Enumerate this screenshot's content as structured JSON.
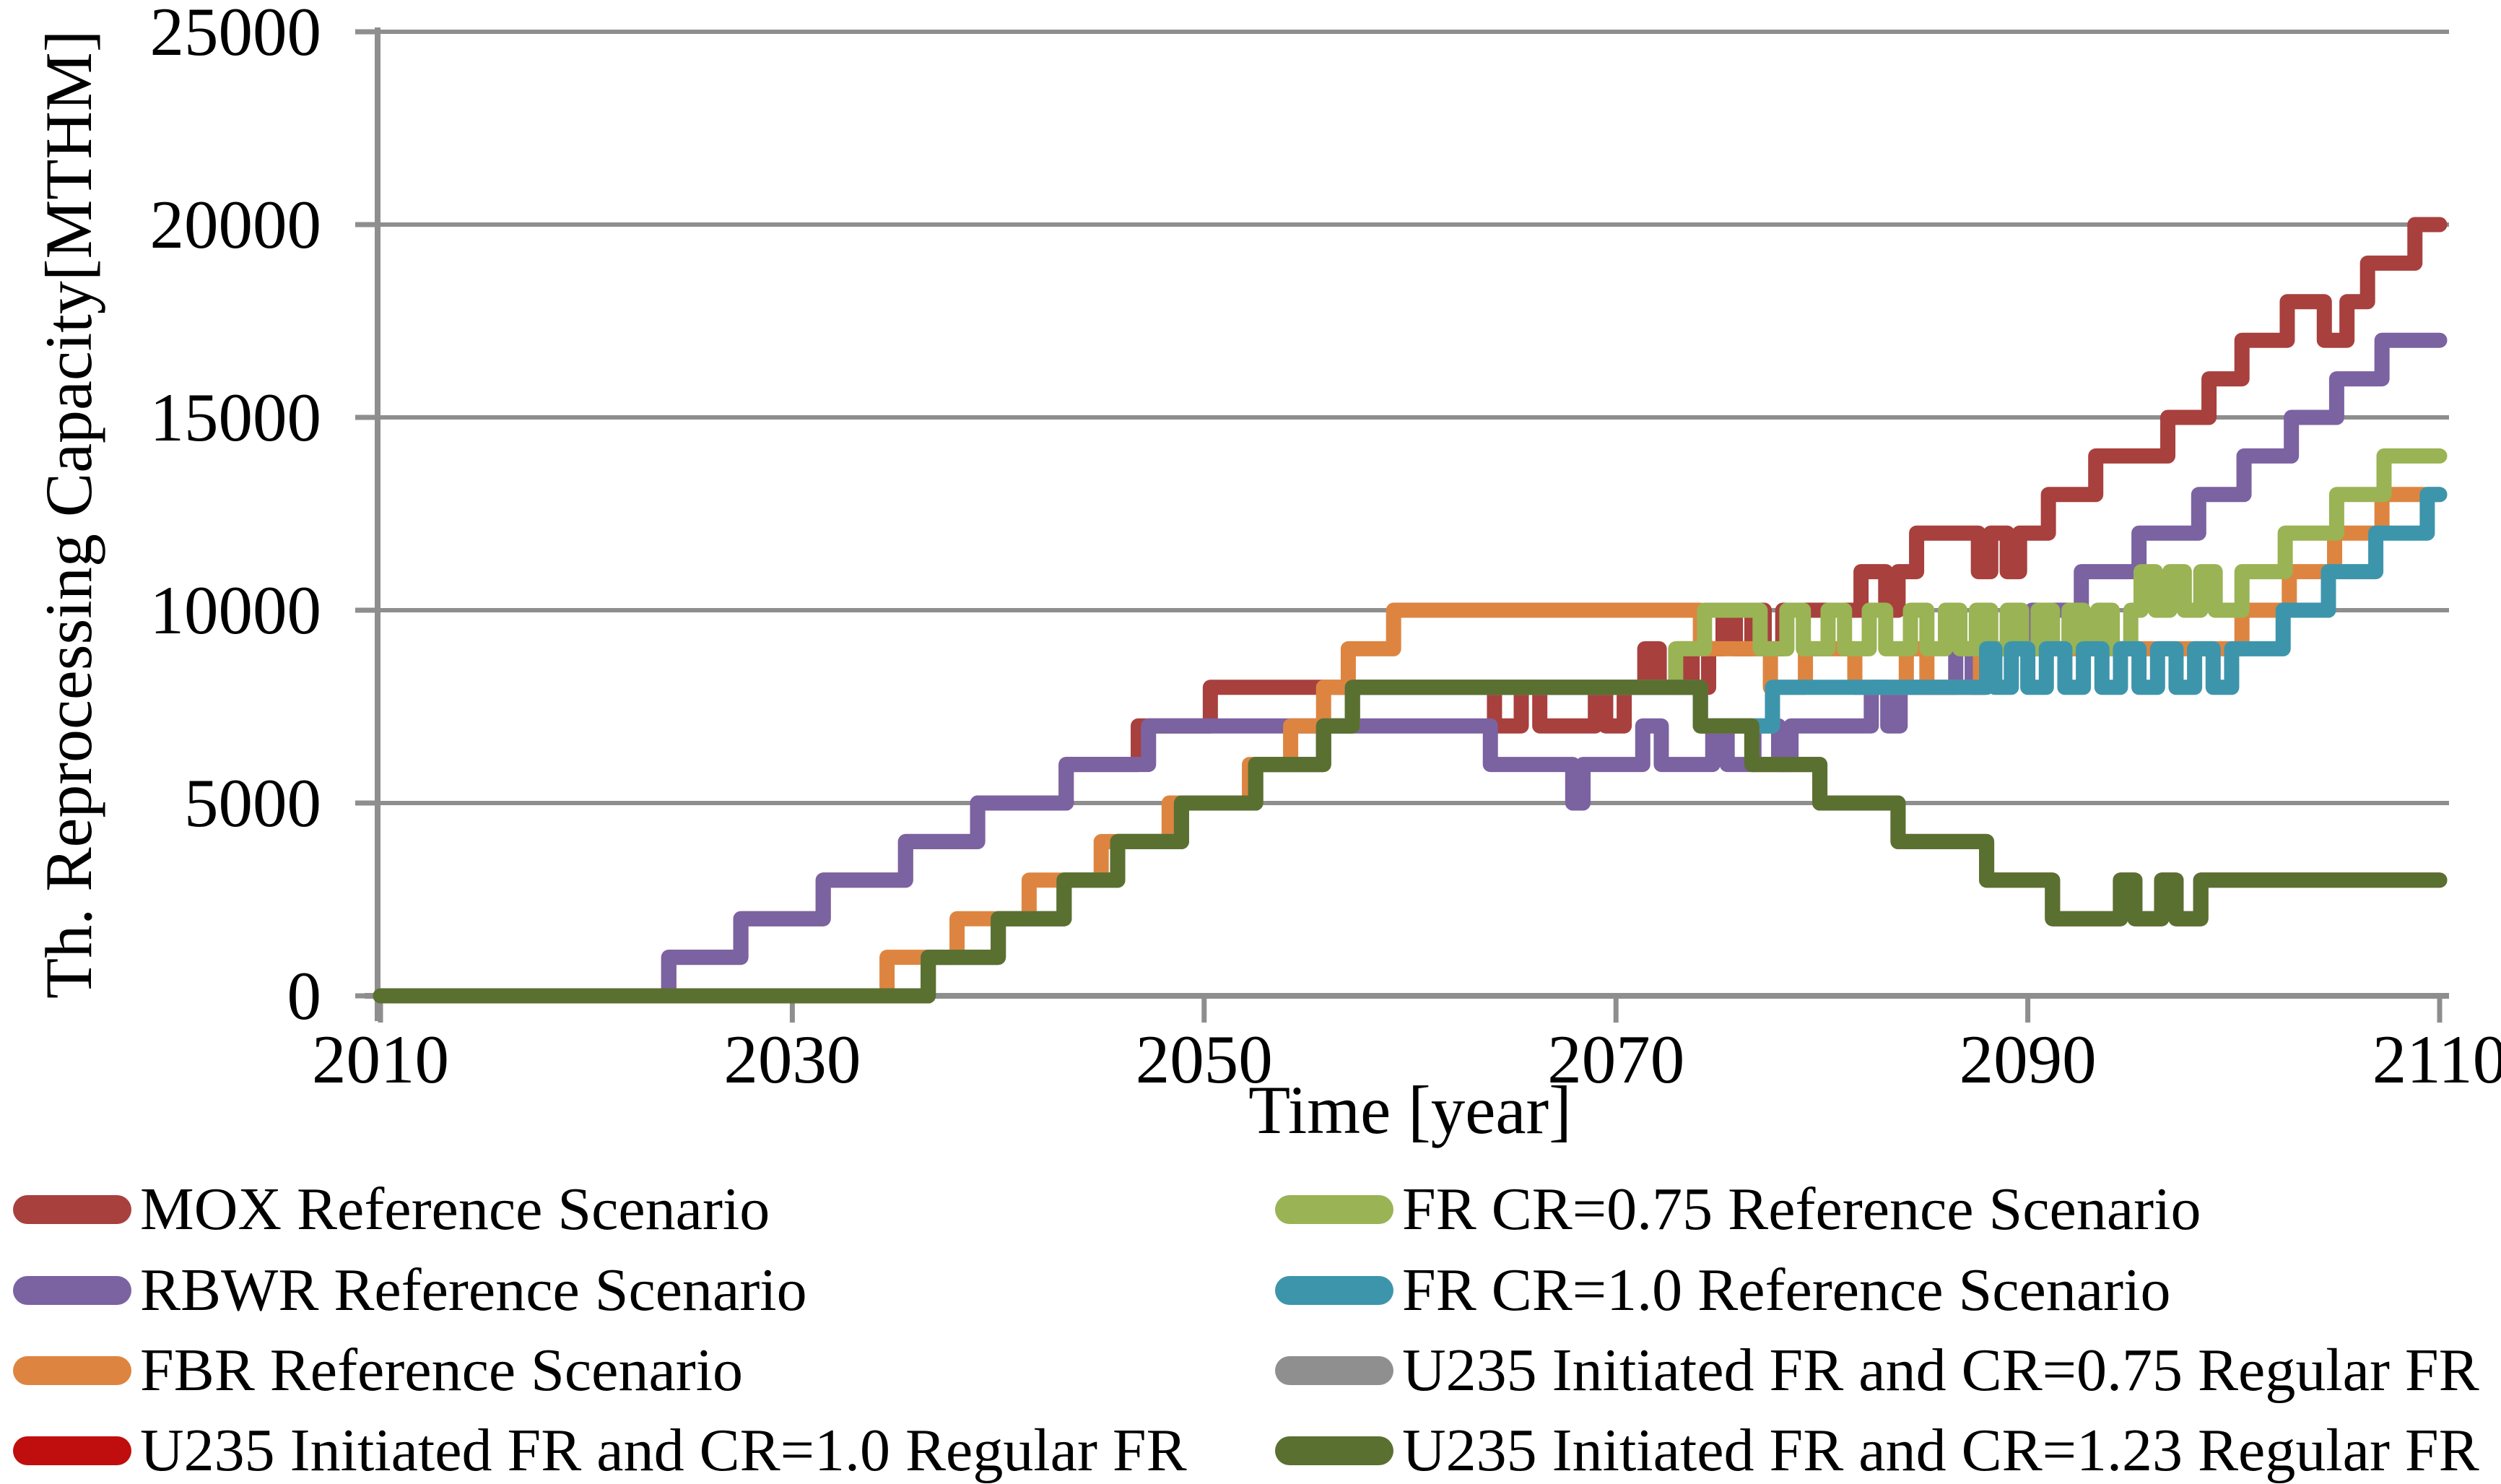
{
  "chart_data": {
    "type": "line",
    "subtype": "step",
    "title": "",
    "xlabel": "Time [year]",
    "ylabel": "Th. Reprocessing Capacity[MTHM]",
    "xlim": [
      2010,
      2110
    ],
    "ylim": [
      0,
      25000
    ],
    "xticks": [
      2010,
      2030,
      2050,
      2070,
      2090,
      2110
    ],
    "yticks": [
      0,
      5000,
      10000,
      15000,
      20000,
      25000
    ],
    "grid": true,
    "axis_color": "#8E8E8E",
    "text_color": "#000000",
    "note": "steps are [year, newValue]; value holds from that year until next step; all series start 2010 and end 2110",
    "series": [
      {
        "id": "mox",
        "label": "MOX Reference Scenario",
        "color": "#A8403E",
        "steps": [
          [
            2010,
            0
          ],
          [
            2024,
            1000
          ],
          [
            2027.5,
            2000
          ],
          [
            2031.5,
            3000
          ],
          [
            2035.5,
            4000
          ],
          [
            2039,
            5000
          ],
          [
            2043.3,
            6000
          ],
          [
            2046.8,
            7000
          ],
          [
            2050.3,
            8000
          ],
          [
            2064.1,
            7000
          ],
          [
            2065.4,
            8000
          ],
          [
            2066.3,
            7000
          ],
          [
            2069,
            8000
          ],
          [
            2069.5,
            7000
          ],
          [
            2070.4,
            8000
          ],
          [
            2071.4,
            9000
          ],
          [
            2072.1,
            8000
          ],
          [
            2073,
            9000
          ],
          [
            2073.7,
            8000
          ],
          [
            2074.5,
            9000
          ],
          [
            2075.2,
            10000
          ],
          [
            2075.8,
            9000
          ],
          [
            2076.6,
            10000
          ],
          [
            2077.2,
            9000
          ],
          [
            2078.1,
            10000
          ],
          [
            2081.9,
            11000
          ],
          [
            2083.1,
            10000
          ],
          [
            2083.7,
            11000
          ],
          [
            2084.6,
            12000
          ],
          [
            2087.6,
            11000
          ],
          [
            2088.2,
            12000
          ],
          [
            2089,
            11000
          ],
          [
            2089.6,
            12000
          ],
          [
            2091,
            13000
          ],
          [
            2093.3,
            14000
          ],
          [
            2096.8,
            15000
          ],
          [
            2098.8,
            16000
          ],
          [
            2100.4,
            17000
          ],
          [
            2102.6,
            18000
          ],
          [
            2104.4,
            17000
          ],
          [
            2105.5,
            18000
          ],
          [
            2106.5,
            19000
          ],
          [
            2108.8,
            20000
          ]
        ]
      },
      {
        "id": "rbwr",
        "label": "RBWR Reference Scenario",
        "color": "#7B62A1",
        "steps": [
          [
            2010,
            0
          ],
          [
            2024,
            1000
          ],
          [
            2027.5,
            2000
          ],
          [
            2031.5,
            3000
          ],
          [
            2035.5,
            4000
          ],
          [
            2039,
            5000
          ],
          [
            2043.3,
            6000
          ],
          [
            2047.3,
            7000
          ],
          [
            2063.9,
            6000
          ],
          [
            2067.9,
            5000
          ],
          [
            2068.4,
            6000
          ],
          [
            2071.3,
            7000
          ],
          [
            2072.2,
            6000
          ],
          [
            2074.7,
            7000
          ],
          [
            2075.4,
            6000
          ],
          [
            2076.7,
            7000
          ],
          [
            2077.9,
            6000
          ],
          [
            2078.5,
            7000
          ],
          [
            2082.4,
            8000
          ],
          [
            2083.2,
            7000
          ],
          [
            2083.8,
            8000
          ],
          [
            2086.5,
            9000
          ],
          [
            2087.3,
            8000
          ],
          [
            2087.9,
            9000
          ],
          [
            2090.2,
            10000
          ],
          [
            2092.6,
            11000
          ],
          [
            2095.4,
            12000
          ],
          [
            2098.3,
            13000
          ],
          [
            2100.5,
            14000
          ],
          [
            2102.8,
            15000
          ],
          [
            2105,
            16000
          ],
          [
            2107.2,
            17000
          ]
        ]
      },
      {
        "id": "fbr",
        "label": "FBR Reference Scenario",
        "color": "#DD8540",
        "steps": [
          [
            2010,
            0
          ],
          [
            2034.6,
            1000
          ],
          [
            2038,
            2000
          ],
          [
            2041.5,
            3000
          ],
          [
            2045,
            4000
          ],
          [
            2048.3,
            5000
          ],
          [
            2052.2,
            6000
          ],
          [
            2054.2,
            7000
          ],
          [
            2055.8,
            8000
          ],
          [
            2057,
            9000
          ],
          [
            2059.2,
            10000
          ],
          [
            2074.1,
            9000
          ],
          [
            2077.5,
            8000
          ],
          [
            2079.2,
            9000
          ],
          [
            2081.6,
            8000
          ],
          [
            2084.1,
            9000
          ],
          [
            2085.1,
            8000
          ],
          [
            2087.7,
            9000
          ],
          [
            2100.4,
            10000
          ],
          [
            2102.7,
            11000
          ],
          [
            2104.9,
            12000
          ],
          [
            2107.2,
            13000
          ]
        ]
      },
      {
        "id": "u235_cr10",
        "label": "U235 Initiated FR and CR=1.0 Regular FR",
        "color": "#C00D0D",
        "steps": [
          [
            2010,
            0
          ],
          [
            2036.6,
            1000
          ],
          [
            2040,
            2000
          ],
          [
            2043.2,
            3000
          ],
          [
            2045.8,
            4000
          ],
          [
            2048.9,
            5000
          ],
          [
            2052.5,
            6000
          ],
          [
            2055.8,
            7000
          ],
          [
            2057.2,
            8000
          ],
          [
            2074.1,
            7000
          ],
          [
            2076.6,
            6000
          ],
          [
            2079.9,
            5000
          ],
          [
            2083.7,
            4000
          ],
          [
            2088,
            3000
          ],
          [
            2091.2,
            2000
          ],
          [
            2094.5,
            3000
          ],
          [
            2095.2,
            2000
          ],
          [
            2096.5,
            3000
          ],
          [
            2097.2,
            2000
          ],
          [
            2098.4,
            3000
          ]
        ]
      },
      {
        "id": "fr075",
        "label": "FR CR=0.75 Reference Scenario",
        "color": "#9AB354",
        "steps": [
          [
            2010,
            0
          ],
          [
            2036.6,
            1000
          ],
          [
            2040,
            2000
          ],
          [
            2043.2,
            3000
          ],
          [
            2045.8,
            4000
          ],
          [
            2048.9,
            5000
          ],
          [
            2052.5,
            6000
          ],
          [
            2055.8,
            7000
          ],
          [
            2057.2,
            8000
          ],
          [
            2072.9,
            9000
          ],
          [
            2074.3,
            10000
          ],
          [
            2077,
            9000
          ],
          [
            2078.3,
            10000
          ],
          [
            2079.1,
            9000
          ],
          [
            2080.3,
            10000
          ],
          [
            2081.1,
            9000
          ],
          [
            2082.3,
            10000
          ],
          [
            2083.1,
            9000
          ],
          [
            2084.3,
            10000
          ],
          [
            2085.1,
            9000
          ],
          [
            2086,
            10000
          ],
          [
            2086.7,
            9000
          ],
          [
            2087.5,
            10000
          ],
          [
            2088.2,
            9000
          ],
          [
            2089,
            10000
          ],
          [
            2089.7,
            9000
          ],
          [
            2090.5,
            10000
          ],
          [
            2091.2,
            9000
          ],
          [
            2092,
            10000
          ],
          [
            2092.7,
            9000
          ],
          [
            2093.4,
            10000
          ],
          [
            2094.1,
            9000
          ],
          [
            2095,
            10000
          ],
          [
            2095.5,
            11000
          ],
          [
            2096.2,
            10000
          ],
          [
            2096.9,
            11000
          ],
          [
            2097.6,
            10000
          ],
          [
            2098.4,
            11000
          ],
          [
            2099.1,
            10000
          ],
          [
            2100.4,
            11000
          ],
          [
            2102.5,
            12000
          ],
          [
            2105,
            13000
          ],
          [
            2107.3,
            14000
          ]
        ]
      },
      {
        "id": "fr10",
        "label": "FR CR=1.0 Reference Scenario",
        "color": "#3D95AC",
        "steps": [
          [
            2010,
            0
          ],
          [
            2036.6,
            1000
          ],
          [
            2040,
            2000
          ],
          [
            2043.2,
            3000
          ],
          [
            2045.8,
            4000
          ],
          [
            2048.9,
            5000
          ],
          [
            2052.5,
            6000
          ],
          [
            2055.8,
            7000
          ],
          [
            2057.2,
            8000
          ],
          [
            2074.1,
            7000
          ],
          [
            2077.6,
            8000
          ],
          [
            2088,
            9000
          ],
          [
            2088.4,
            8000
          ],
          [
            2089.2,
            9000
          ],
          [
            2090,
            8000
          ],
          [
            2090.9,
            9000
          ],
          [
            2091.8,
            8000
          ],
          [
            2092.7,
            9000
          ],
          [
            2093.6,
            8000
          ],
          [
            2094.5,
            9000
          ],
          [
            2095.4,
            8000
          ],
          [
            2096.3,
            9000
          ],
          [
            2097.2,
            8000
          ],
          [
            2098.1,
            9000
          ],
          [
            2099,
            8000
          ],
          [
            2099.9,
            9000
          ],
          [
            2102.4,
            10000
          ],
          [
            2104.6,
            11000
          ],
          [
            2106.9,
            12000
          ],
          [
            2109.4,
            13000
          ]
        ]
      },
      {
        "id": "u235_cr075",
        "label": "U235 Initiated FR and CR=0.75 Regular FR",
        "color": "#8F8F8F",
        "steps": [
          [
            2010,
            0
          ],
          [
            2036.6,
            1000
          ],
          [
            2040,
            2000
          ],
          [
            2043.2,
            3000
          ],
          [
            2045.8,
            4000
          ],
          [
            2048.9,
            5000
          ],
          [
            2052.5,
            6000
          ],
          [
            2055.8,
            7000
          ],
          [
            2057.2,
            8000
          ],
          [
            2074.1,
            7000
          ],
          [
            2076.6,
            6000
          ],
          [
            2079.9,
            5000
          ],
          [
            2083.7,
            4000
          ],
          [
            2088,
            3000
          ],
          [
            2091.2,
            2000
          ],
          [
            2094.5,
            3000
          ],
          [
            2095.2,
            2000
          ],
          [
            2096.5,
            3000
          ],
          [
            2097.2,
            2000
          ],
          [
            2098.4,
            3000
          ]
        ]
      },
      {
        "id": "u235_cr123",
        "label": "U235 Initiated FR and CR=1.23 Regular FR",
        "color": "#5A7030",
        "steps": [
          [
            2010,
            0
          ],
          [
            2036.6,
            1000
          ],
          [
            2040,
            2000
          ],
          [
            2043.2,
            3000
          ],
          [
            2045.8,
            4000
          ],
          [
            2048.9,
            5000
          ],
          [
            2052.5,
            6000
          ],
          [
            2055.8,
            7000
          ],
          [
            2057.2,
            8000
          ],
          [
            2074.1,
            7000
          ],
          [
            2076.6,
            6000
          ],
          [
            2079.9,
            5000
          ],
          [
            2083.7,
            4000
          ],
          [
            2088,
            3000
          ],
          [
            2091.2,
            2000
          ],
          [
            2094.5,
            3000
          ],
          [
            2095.2,
            2000
          ],
          [
            2096.5,
            3000
          ],
          [
            2097.2,
            2000
          ],
          [
            2098.4,
            3000
          ]
        ]
      }
    ]
  },
  "legend": {
    "columns": [
      [
        "mox",
        "rbwr",
        "fbr",
        "u235_cr10"
      ],
      [
        "fr075",
        "fr10",
        "u235_cr075",
        "u235_cr123"
      ]
    ]
  }
}
